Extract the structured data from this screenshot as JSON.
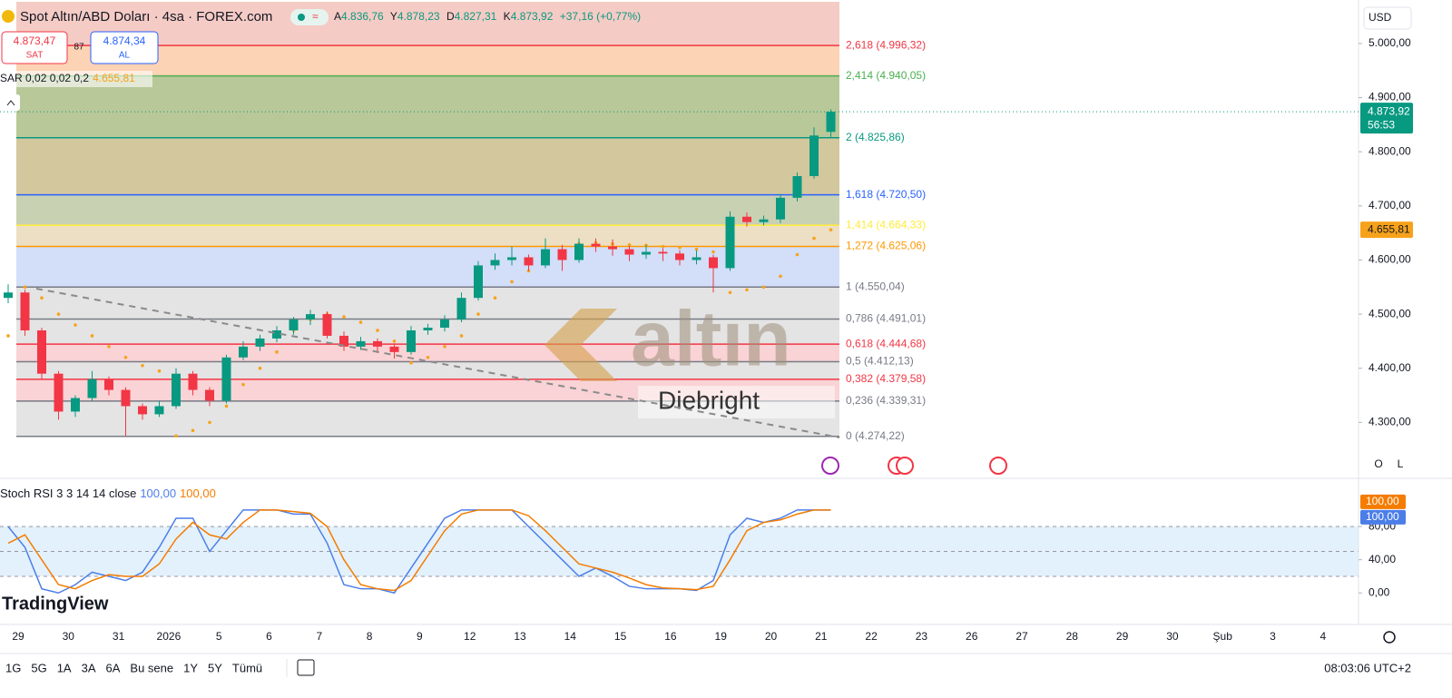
{
  "header": {
    "symbol": "Spot Altın/ABD Doları · 4sa · FOREX.com",
    "ohlc": [
      {
        "label": "A",
        "value": "4.836,76"
      },
      {
        "label": "Y",
        "value": "4.878,23"
      },
      {
        "label": "D",
        "value": "4.827,31"
      },
      {
        "label": "K",
        "value": "4.873,92"
      }
    ],
    "change": "+37,16 (+0,77%)",
    "sell": {
      "price": "4.873,47",
      "label": "SAT"
    },
    "spread": "87",
    "buy": {
      "price": "4.874,34",
      "label": "AL"
    },
    "currency": "USD"
  },
  "chart_data": [
    {
      "type": "candlestick",
      "up_color": "#089981",
      "down_color": "#f23645",
      "ylim": [
        4200,
        5077
      ],
      "yticks": [
        {
          "value": 5000,
          "label": "5.000,00"
        },
        {
          "value": 4900,
          "label": "4.900,00"
        },
        {
          "value": 4800,
          "label": "4.800,00"
        },
        {
          "value": 4700,
          "label": "4.700,00"
        },
        {
          "value": 4600,
          "label": "4.600,00"
        },
        {
          "value": 4500,
          "label": "4.500,00"
        },
        {
          "value": 4400,
          "label": "4.400,00"
        },
        {
          "value": 4300,
          "label": "4.300,00"
        }
      ],
      "last_price_label": "4.873,92",
      "countdown": "56:53",
      "candles": [
        [
          4530,
          4555,
          4520,
          4540
        ],
        [
          4540,
          4545,
          4460,
          4470
        ],
        [
          4470,
          4475,
          4380,
          4390
        ],
        [
          4390,
          4395,
          4305,
          4320
        ],
        [
          4320,
          4350,
          4310,
          4345
        ],
        [
          4345,
          4395,
          4340,
          4380
        ],
        [
          4380,
          4385,
          4350,
          4360
        ],
        [
          4360,
          4365,
          4275,
          4330
        ],
        [
          4330,
          4335,
          4305,
          4315
        ],
        [
          4315,
          4340,
          4310,
          4330
        ],
        [
          4330,
          4400,
          4325,
          4390
        ],
        [
          4390,
          4395,
          4350,
          4360
        ],
        [
          4360,
          4365,
          4330,
          4340
        ],
        [
          4340,
          4425,
          4335,
          4420
        ],
        [
          4420,
          4450,
          4415,
          4440
        ],
        [
          4440,
          4462,
          4432,
          4455
        ],
        [
          4455,
          4478,
          4448,
          4470
        ],
        [
          4470,
          4495,
          4462,
          4490
        ],
        [
          4490,
          4508,
          4480,
          4500
        ],
        [
          4500,
          4505,
          4455,
          4460
        ],
        [
          4460,
          4468,
          4432,
          4440
        ],
        [
          4440,
          4458,
          4434,
          4450
        ],
        [
          4450,
          4455,
          4428,
          4440
        ],
        [
          4440,
          4446,
          4418,
          4430
        ],
        [
          4430,
          4478,
          4425,
          4470
        ],
        [
          4470,
          4482,
          4462,
          4475
        ],
        [
          4475,
          4498,
          4468,
          4490
        ],
        [
          4490,
          4540,
          4485,
          4530
        ],
        [
          4530,
          4598,
          4525,
          4590
        ],
        [
          4590,
          4612,
          4582,
          4600
        ],
        [
          4600,
          4625,
          4590,
          4605
        ],
        [
          4605,
          4610,
          4580,
          4590
        ],
        [
          4590,
          4640,
          4585,
          4620
        ],
        [
          4620,
          4628,
          4580,
          4600
        ],
        [
          4600,
          4640,
          4595,
          4630
        ],
        [
          4630,
          4640,
          4615,
          4625
        ],
        [
          4625,
          4638,
          4608,
          4620
        ],
        [
          4620,
          4626,
          4598,
          4610
        ],
        [
          4610,
          4628,
          4602,
          4615
        ],
        [
          4615,
          4622,
          4598,
          4612
        ],
        [
          4612,
          4618,
          4590,
          4600
        ],
        [
          4600,
          4618,
          4592,
          4605
        ],
        [
          4605,
          4610,
          4540,
          4585
        ],
        [
          4585,
          4690,
          4580,
          4680
        ],
        [
          4680,
          4688,
          4662,
          4670
        ],
        [
          4670,
          4682,
          4664,
          4675
        ],
        [
          4675,
          4722,
          4668,
          4715
        ],
        [
          4715,
          4762,
          4708,
          4755
        ],
        [
          4755,
          4845,
          4750,
          4830
        ],
        [
          4836.76,
          4878.23,
          4827.31,
          4873.92
        ]
      ],
      "sar": {
        "name": "SAR 0,02 0,02 0,2",
        "value_label": "4.655,81",
        "color": "#f7a21b",
        "values": [
          4460,
          4550,
          4530,
          4500,
          4480,
          4460,
          4440,
          4420,
          4405,
          4395,
          4275,
          4285,
          4300,
          4330,
          4370,
          4400,
          4430,
          4470,
          4490,
          4500,
          4495,
          4485,
          4470,
          4450,
          4410,
          4420,
          4440,
          4460,
          4500,
          4530,
          4560,
          4580,
          4595,
          4610,
          4630,
          4632,
          4630,
          4628,
          4627,
          4625,
          4623,
          4620,
          4615,
          4540,
          4545,
          4550,
          4570,
          4610,
          4640,
          4655.81
        ]
      },
      "fib": {
        "top_fill": "#f5cbc5",
        "levels": [
          {
            "label": "2,618 (4.996,32)",
            "price": 4996.32,
            "color": "#f23645",
            "fill": "#fcd3b4"
          },
          {
            "label": "2,414 (4.940,05)",
            "price": 4940.05,
            "color": "#4caf50",
            "fill": "#b8c898"
          },
          {
            "label": "2 (4.825,86)",
            "price": 4825.86,
            "color": "#089981",
            "fill": "#d3c79e"
          },
          {
            "label": "1,618 (4.720,50)",
            "price": 4720.5,
            "color": "#2962ff",
            "fill": "#c9d1b3"
          },
          {
            "label": "1,414 (4.664,33)",
            "price": 4664.33,
            "color": "#ffeb3b",
            "fill": "#ecdfc3"
          },
          {
            "label": "1,272 (4.625,06)",
            "price": 4625.06,
            "color": "#ff9800",
            "fill": "#d3def8"
          },
          {
            "label": "1 (4.550,04)",
            "price": 4550.04,
            "color": "#787b86",
            "fill": "#e4e4e4"
          },
          {
            "label": "0,786 (4.491,01)",
            "price": 4491.01,
            "color": "#787b86",
            "fill": "#e4e4e4"
          },
          {
            "label": "0,618 (4.444,68)",
            "price": 4444.68,
            "color": "#f23645",
            "fill": "#f9d3d5"
          },
          {
            "label": "0,5 (4.412,13)",
            "price": 4412.13,
            "color": "#787b86",
            "fill": "#e4e4e4"
          },
          {
            "label": "0,382 (4.379,58)",
            "price": 4379.58,
            "color": "#f23645",
            "fill": "#f9d3d5"
          },
          {
            "label": "0,236 (4.339,31)",
            "price": 4339.31,
            "color": "#787b86",
            "fill": "#e4e4e4"
          },
          {
            "label": "0 (4.274,22)",
            "price": 4274.22,
            "color": "#787b86"
          }
        ]
      }
    },
    {
      "type": "line",
      "name": "Stoch RSI 3 3 14 14 close",
      "ylim": [
        -38,
        137
      ],
      "yticks": [
        {
          "value": 80,
          "label": "80,00"
        },
        {
          "value": 40,
          "label": "40,00"
        },
        {
          "value": 0,
          "label": "0,00"
        }
      ],
      "levels": [
        80,
        50,
        20
      ],
      "band_fill": "#e3f1fc",
      "series": [
        {
          "color": "#4c7ee8",
          "value_label": "100,00",
          "values": [
            80,
            55,
            5,
            0,
            10,
            25,
            20,
            15,
            25,
            55,
            90,
            90,
            50,
            75,
            100,
            100,
            100,
            95,
            95,
            60,
            10,
            5,
            5,
            0,
            30,
            60,
            90,
            100,
            100,
            100,
            100,
            80,
            60,
            40,
            20,
            30,
            20,
            8,
            5,
            5,
            5,
            3,
            15,
            70,
            90,
            85,
            90,
            100,
            100,
            100
          ]
        },
        {
          "color": "#f57c00",
          "value_label": "100,00",
          "values": [
            60,
            70,
            40,
            10,
            5,
            15,
            22,
            20,
            20,
            35,
            65,
            85,
            70,
            65,
            85,
            100,
            100,
            98,
            96,
            80,
            40,
            10,
            5,
            3,
            15,
            45,
            75,
            95,
            100,
            100,
            100,
            93,
            75,
            55,
            35,
            30,
            25,
            18,
            10,
            6,
            5,
            4,
            8,
            40,
            75,
            85,
            88,
            95,
            100,
            100
          ]
        }
      ]
    }
  ],
  "x_axis_labels": [
    "29",
    "30",
    "31",
    "2026",
    "5",
    "6",
    "7",
    "8",
    "9",
    "12",
    "13",
    "14",
    "15",
    "16",
    "19",
    "20",
    "21",
    "22",
    "23",
    "26",
    "27",
    "28",
    "29",
    "30",
    "Şub",
    "3",
    "4"
  ],
  "watermark": {
    "brand": "altın",
    "author": "Diebright"
  },
  "logo": "TradingView",
  "toolbar": {
    "ranges": [
      "1G",
      "5G",
      "1A",
      "3A",
      "6A",
      "Bu sene",
      "1Y",
      "5Y",
      "Tümü"
    ],
    "clock": "08:03:06 UTC+2"
  },
  "scale_buttons": [
    "O",
    "L"
  ]
}
